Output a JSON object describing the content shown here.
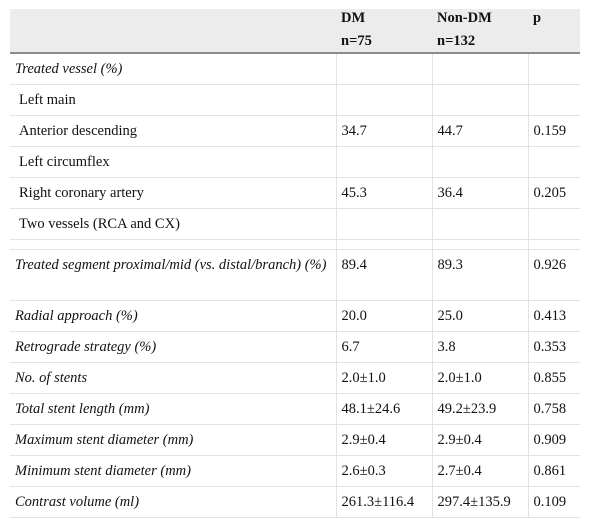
{
  "header": {
    "col1_line1": "DM",
    "col1_line2": "n=75",
    "col2_line1": "Non-DM",
    "col2_line2": "n=132",
    "col3": "p"
  },
  "rows": [
    {
      "label": "Treated vessel (%)",
      "dm": "",
      "nondm": "",
      "p": ""
    },
    {
      "label": "Left main",
      "dm": "",
      "nondm": "",
      "p": ""
    },
    {
      "label": "Anterior descending",
      "dm": "34.7",
      "nondm": "44.7",
      "p": "0.159"
    },
    {
      "label": "Left circumflex",
      "dm": "",
      "nondm": "",
      "p": ""
    },
    {
      "label": "Right coronary artery",
      "dm": "45.3",
      "nondm": "36.4",
      "p": "0.205"
    },
    {
      "label": "Two vessels (RCA and CX)",
      "dm": "",
      "nondm": "",
      "p": ""
    },
    {
      "label": "",
      "dm": "",
      "nondm": "",
      "p": ""
    },
    {
      "label": "Treated segment proximal/mid (vs. distal/branch) (%)",
      "dm": "89.4",
      "nondm": "89.3",
      "p": "0.926"
    },
    {
      "label": "Radial approach (%)",
      "dm": "20.0",
      "nondm": "25.0",
      "p": "0.413"
    },
    {
      "label": "Retrograde strategy (%)",
      "dm": "6.7",
      "nondm": "3.8",
      "p": "0.353"
    },
    {
      "label": "No. of stents",
      "dm": "2.0±1.0",
      "nondm": "2.0±1.0",
      "p": "0.855"
    },
    {
      "label": "Total stent length (mm)",
      "dm": "48.1±24.6",
      "nondm": "49.2±23.9",
      "p": "0.758"
    },
    {
      "label": "Maximum stent diameter (mm)",
      "dm": "2.9±0.4",
      "nondm": "2.9±0.4",
      "p": "0.909"
    },
    {
      "label": "Minimum stent diameter (mm)",
      "dm": "2.6±0.3",
      "nondm": "2.7±0.4",
      "p": "0.861"
    },
    {
      "label": "Contrast volume (ml)",
      "dm": "261.3±116.4",
      "nondm": "297.4±135.9",
      "p": "0.109"
    }
  ]
}
